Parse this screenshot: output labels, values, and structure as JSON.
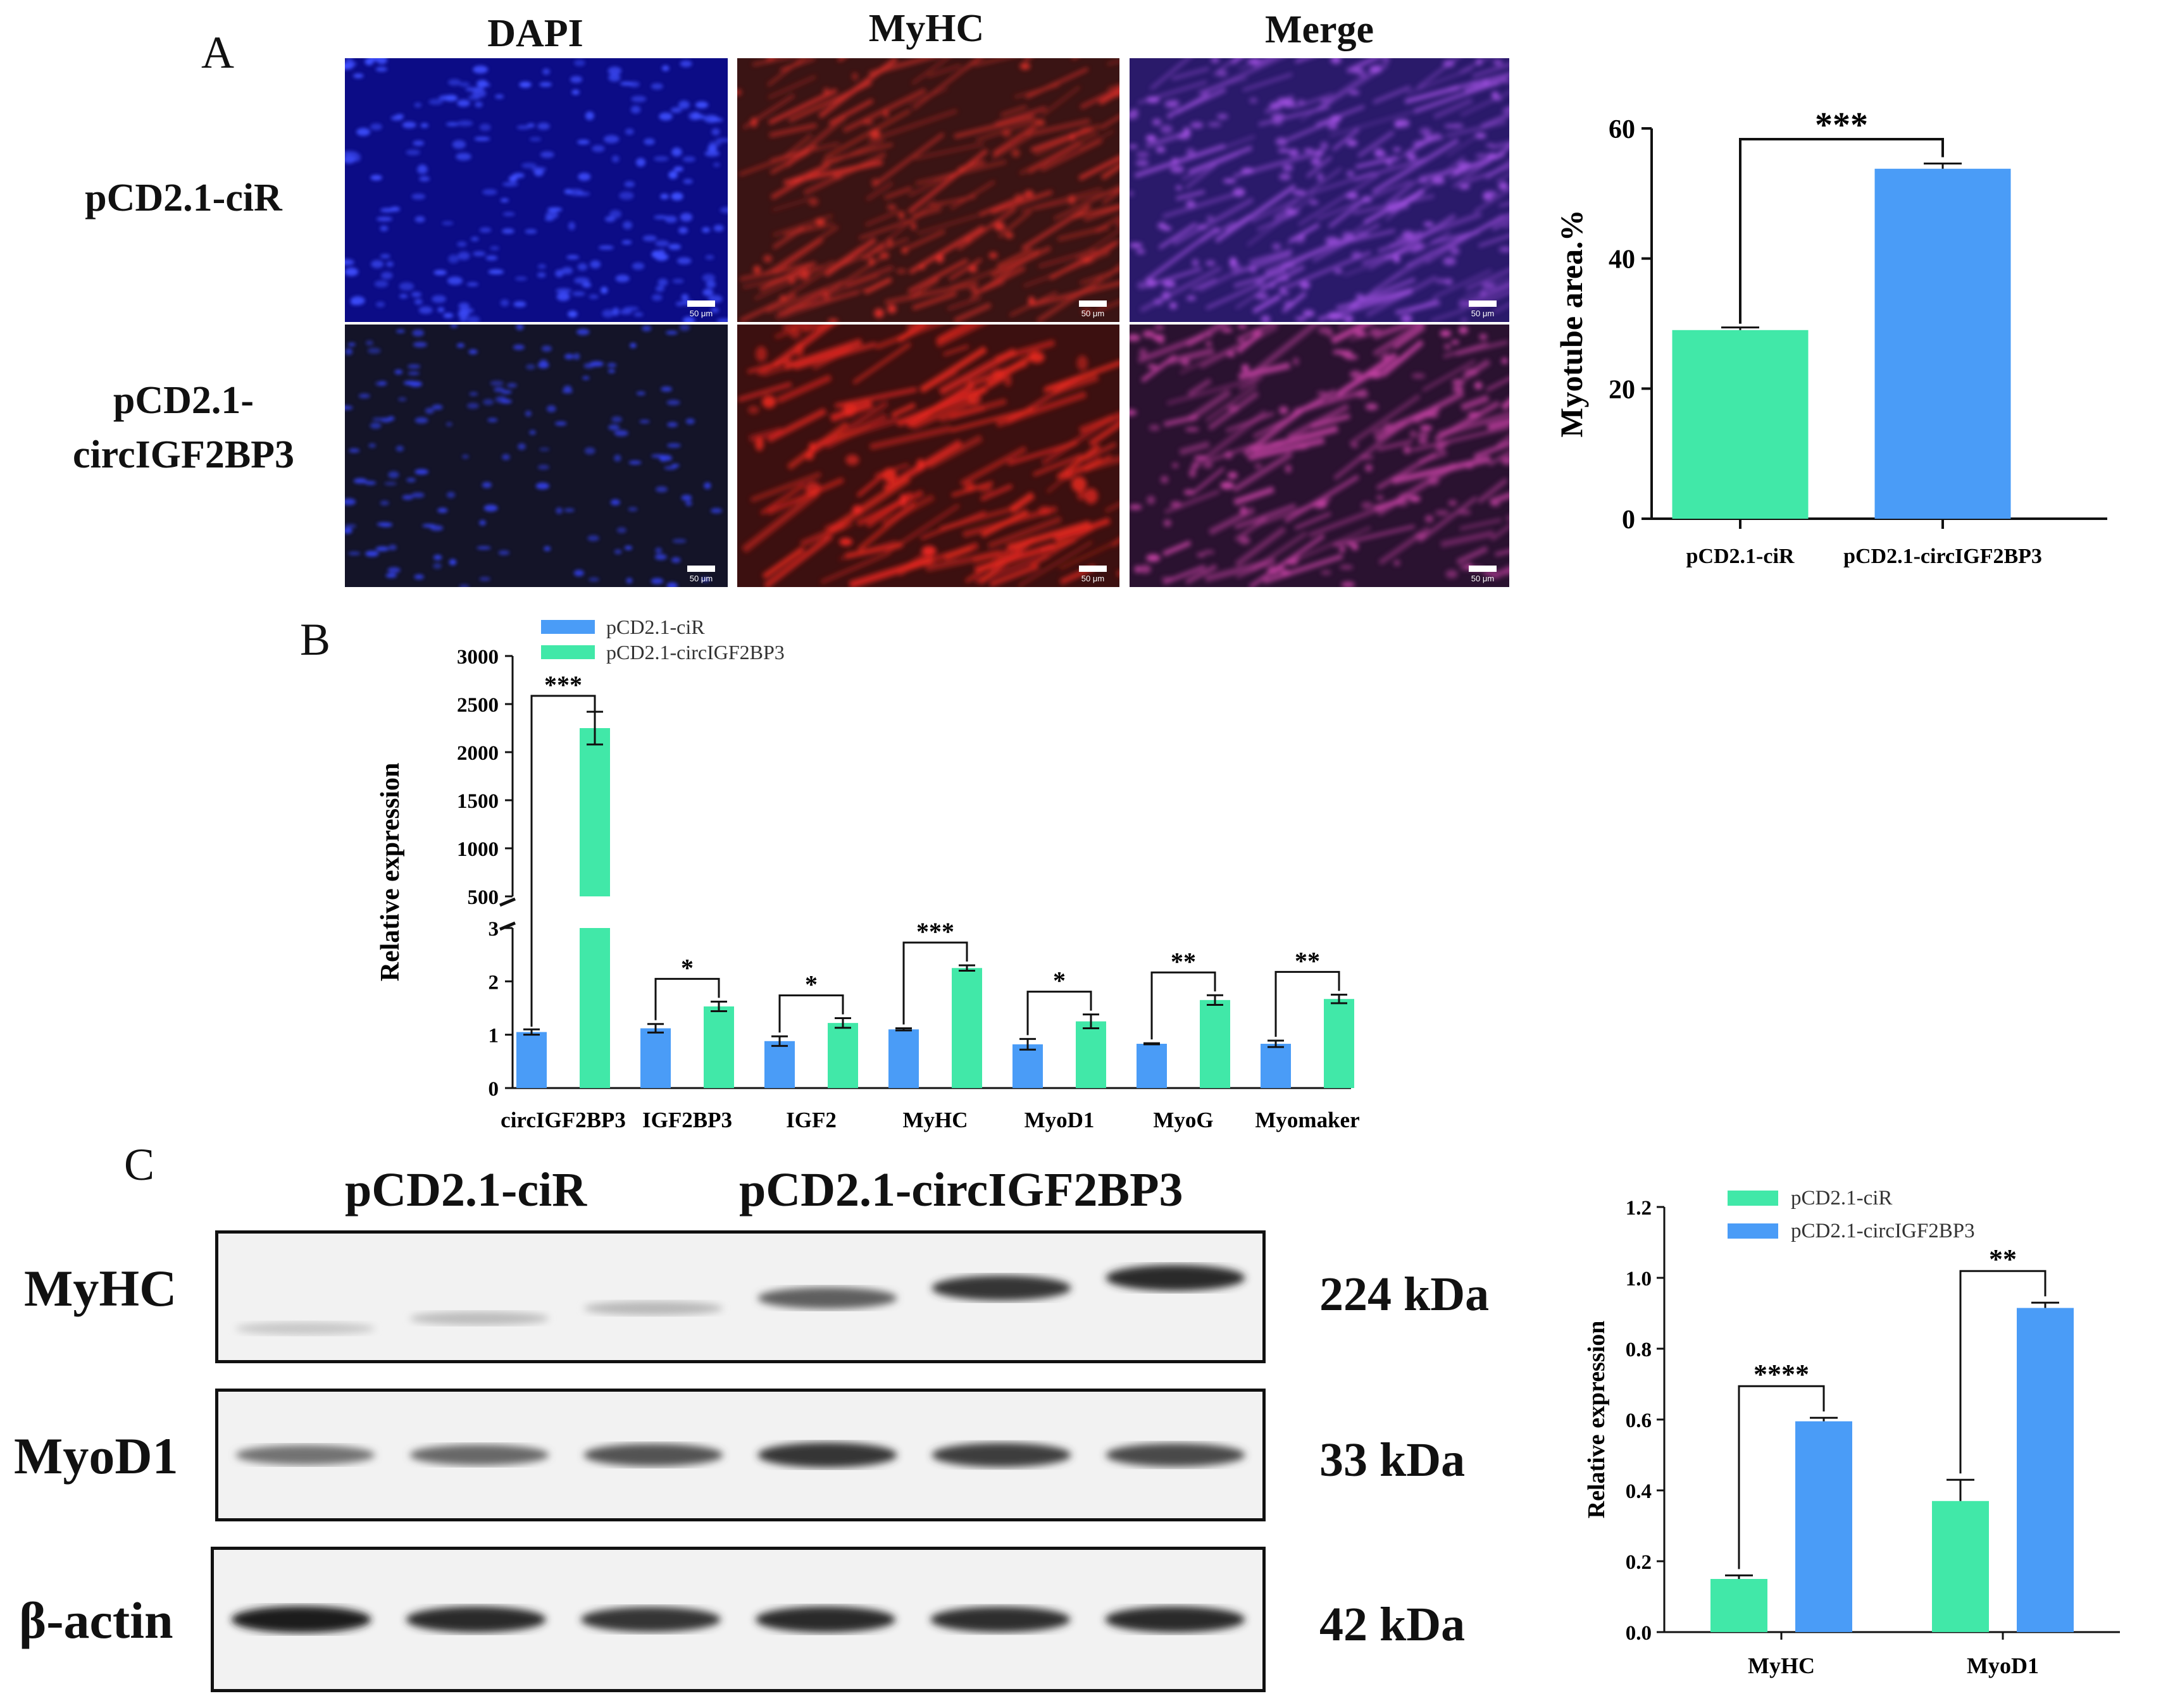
{
  "panel_a": {
    "letter": "A",
    "columns": [
      "DAPI",
      "MyHC",
      "Merge"
    ],
    "rows": [
      "pCD2.1-ciR",
      "pCD2.1-\ncircIGF2BP3"
    ],
    "scale_bar": "50 μm"
  },
  "panel_b": {
    "letter": "B"
  },
  "panel_c": {
    "letter": "C",
    "groups": [
      "pCD2.1-ciR",
      "pCD2.1-circIGF2BP3"
    ],
    "blots": [
      {
        "protein": "MyHC",
        "size": "224 kDa",
        "band_intensity": [
          0.15,
          0.2,
          0.22,
          0.65,
          0.85,
          0.9
        ]
      },
      {
        "protein": "MyoD1",
        "size": "33 kDa",
        "band_intensity": [
          0.55,
          0.6,
          0.7,
          0.85,
          0.8,
          0.75
        ]
      },
      {
        "protein": "β-actin",
        "size": "42 kDa",
        "band_intensity": [
          0.95,
          0.9,
          0.85,
          0.9,
          0.88,
          0.9
        ]
      }
    ]
  },
  "colors": {
    "green": "#41e8a8",
    "blue": "#4a9cf7"
  },
  "chart_data": [
    {
      "id": "myotube",
      "type": "bar",
      "categories": [
        "pCD2.1-ciR",
        "pCD2.1-circIGF2BP3"
      ],
      "values": [
        29,
        53.8
      ],
      "errors": [
        0.4,
        0.8
      ],
      "bar_colors": [
        "#41e8a8",
        "#4a9cf7"
      ],
      "ylabel": "Myotube area.%",
      "ylim": [
        0,
        60
      ],
      "yticks": [
        0,
        20,
        40,
        60
      ],
      "significance": "***"
    },
    {
      "id": "relexp",
      "type": "bar",
      "categories": [
        "circIGF2BP3",
        "IGF2BP3",
        "IGF2",
        "MyHC",
        "MyoD1",
        "MyoG",
        "Myomaker"
      ],
      "series": [
        {
          "name": "pCD2.1-ciR",
          "color": "#4a9cf7",
          "values": [
            1.05,
            1.12,
            0.88,
            1.1,
            0.82,
            0.83,
            0.83
          ],
          "errors": [
            0.05,
            0.08,
            0.09,
            0.02,
            0.1,
            0.01,
            0.06
          ]
        },
        {
          "name": "pCD2.1-circIGF2BP3",
          "color": "#41e8a8",
          "values": [
            2250,
            1.53,
            1.22,
            2.25,
            1.25,
            1.65,
            1.67
          ],
          "errors": [
            170,
            0.09,
            0.09,
            0.05,
            0.13,
            0.09,
            0.08
          ]
        }
      ],
      "ylabel": "Relative expression",
      "ylim_lower": [
        0,
        3
      ],
      "ylim_upper": [
        500,
        3000
      ],
      "yticks_lower": [
        0,
        1,
        2,
        3
      ],
      "yticks_upper": [
        500,
        1000,
        1500,
        2000,
        2500,
        3000
      ],
      "significance": [
        "***",
        "*",
        "*",
        "***",
        "*",
        "**",
        "**"
      ]
    },
    {
      "id": "wb",
      "type": "bar",
      "categories": [
        "MyHC",
        "MyoD1"
      ],
      "series": [
        {
          "name": "pCD2.1-ciR",
          "color": "#41e8a8",
          "values": [
            0.15,
            0.37
          ],
          "errors": [
            0.01,
            0.06
          ]
        },
        {
          "name": "pCD2.1-circIGF2BP3",
          "color": "#4a9cf7",
          "values": [
            0.595,
            0.915
          ],
          "errors": [
            0.01,
            0.015
          ]
        }
      ],
      "ylabel": "Relative expression",
      "ylim": [
        0,
        1.2
      ],
      "yticks": [
        "0.0",
        "0.2",
        "0.4",
        "0.6",
        "0.8",
        "1.0",
        "1.2"
      ],
      "significance": [
        "****",
        "**"
      ]
    }
  ]
}
